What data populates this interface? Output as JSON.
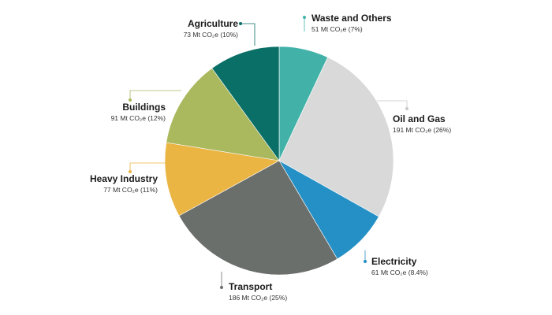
{
  "chart_data": {
    "type": "pie",
    "unit": "Mt CO₂e",
    "slices": [
      {
        "name": "Waste and Others",
        "value": 51,
        "value_label": "51 Mt CO₂e (7%)",
        "color": "#42b2a8"
      },
      {
        "name": "Oil and Gas",
        "value": 191,
        "value_label": "191 Mt CO₂e (26%)",
        "color": "#d9d9d9"
      },
      {
        "name": "Electricity",
        "value": 61,
        "value_label": "61 Mt CO₂e (8.4%)",
        "color": "#2590c5"
      },
      {
        "name": "Transport",
        "value": 186,
        "value_label": "186 Mt CO₂e (25%)",
        "color": "#6b6f6c"
      },
      {
        "name": "Heavy Industry",
        "value": 77,
        "value_label": "77 Mt CO₂e (11%)",
        "color": "#ebb544"
      },
      {
        "name": "Buildings",
        "value": 91,
        "value_label": "91 Mt CO₂e (12%)",
        "color": "#aab85e"
      },
      {
        "name": "Agriculture",
        "value": 73,
        "value_label": "73 Mt CO₂e (10%)",
        "color": "#0a6f66"
      }
    ]
  }
}
